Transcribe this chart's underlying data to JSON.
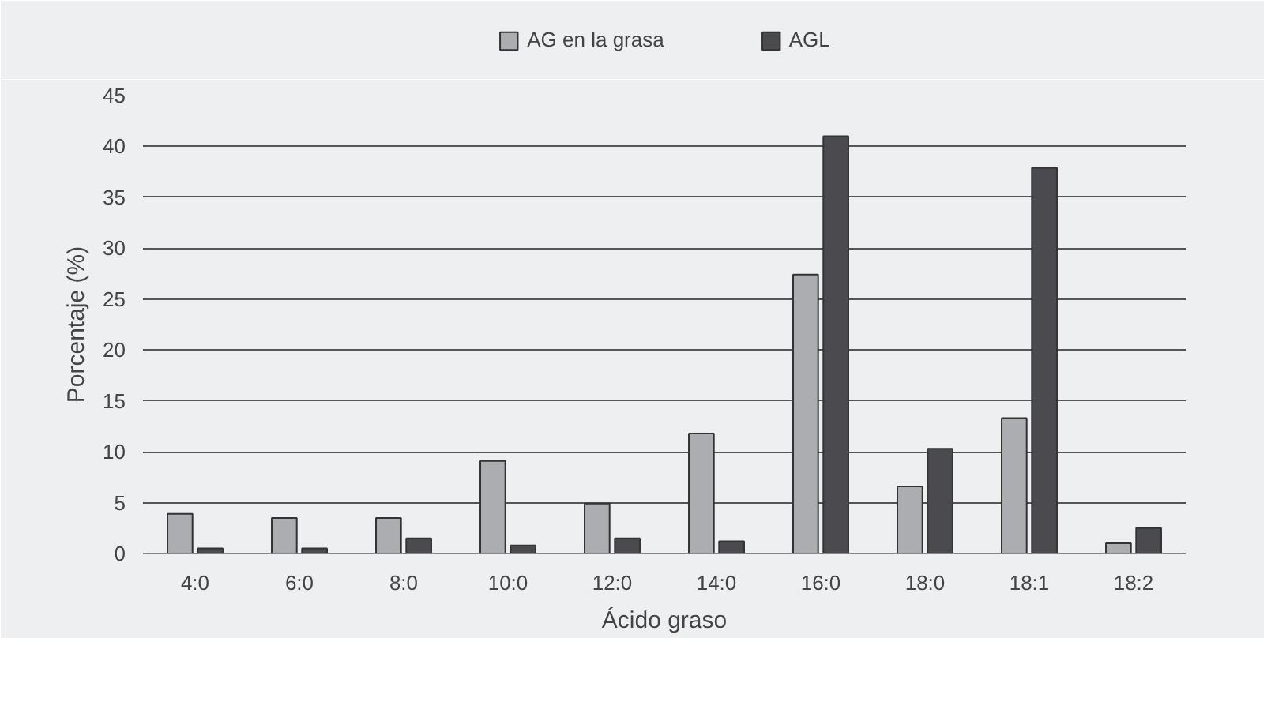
{
  "chart_data": {
    "type": "bar",
    "xlabel": "Ácido graso",
    "ylabel": "Porcentaje (%)",
    "categories": [
      "4:0",
      "6:0",
      "8:0",
      "10:0",
      "12:0",
      "14:0",
      "16:0",
      "18:0",
      "18:1",
      "18:2"
    ],
    "series": [
      {
        "name": "AG en la grasa",
        "color": "#acadb0",
        "values": [
          3.9,
          3.5,
          3.5,
          9.1,
          4.9,
          11.8,
          27.4,
          6.6,
          13.3,
          1.0
        ]
      },
      {
        "name": "AGL",
        "color": "#4a4a4f",
        "values": [
          0.5,
          0.5,
          1.5,
          0.8,
          1.5,
          1.2,
          41.0,
          10.3,
          37.9,
          2.5
        ]
      }
    ],
    "ylim": [
      0,
      45
    ],
    "yticks": [
      0,
      5,
      10,
      15,
      20,
      25,
      30,
      35,
      40,
      45
    ],
    "grid": "y",
    "legend": "top"
  }
}
